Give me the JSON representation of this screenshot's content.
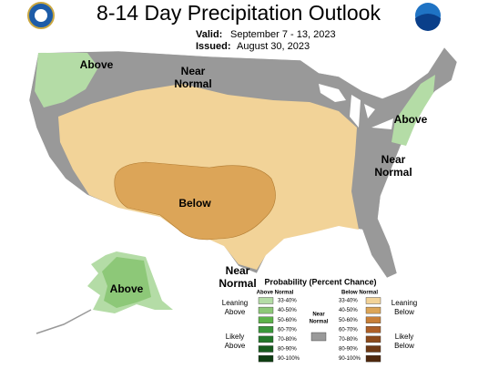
{
  "header": {
    "title": "8-14 Day Precipitation Outlook",
    "valid_label": "Valid:",
    "valid": "September 7 - 13, 2023",
    "issued_label": "Issued:",
    "issued": "August 30, 2023"
  },
  "map_labels": [
    {
      "lines": [
        "Above"
      ]
    },
    {
      "lines": [
        "Near",
        "Normal"
      ]
    },
    {
      "lines": [
        "Below"
      ]
    },
    {
      "lines": [
        "Above"
      ]
    },
    {
      "lines": [
        "Near",
        "Normal"
      ]
    },
    {
      "lines": [
        "Near",
        "Normal"
      ]
    },
    {
      "lines": [
        "Above"
      ]
    }
  ],
  "legend": {
    "title": "Probability (Percent Chance)",
    "above": {
      "heading": "Above Normal",
      "items": [
        {
          "label": "33-40%",
          "color": "#b4dca6"
        },
        {
          "label": "40-50%",
          "color": "#8dc878"
        },
        {
          "label": "50-60%",
          "color": "#5cb34a"
        },
        {
          "label": "60-70%",
          "color": "#39973a"
        },
        {
          "label": "70-80%",
          "color": "#23782a"
        },
        {
          "label": "80-90%",
          "color": "#175c1e"
        },
        {
          "label": "90-100%",
          "color": "#0e3d12"
        }
      ]
    },
    "below": {
      "heading": "Below Normal",
      "items": [
        {
          "label": "33-40%",
          "color": "#f2d398"
        },
        {
          "label": "40-50%",
          "color": "#dca558"
        },
        {
          "label": "50-60%",
          "color": "#c97f38"
        },
        {
          "label": "60-70%",
          "color": "#ad5f27"
        },
        {
          "label": "70-80%",
          "color": "#8c4a1b"
        },
        {
          "label": "80-90%",
          "color": "#6e3914"
        },
        {
          "label": "90-100%",
          "color": "#4f280d"
        }
      ]
    },
    "near": {
      "heading": [
        "Near",
        "Normal"
      ],
      "color": "#999999"
    },
    "side_labels": {
      "leaning_above": [
        "Leaning",
        "Above"
      ],
      "likely_above": [
        "Likely",
        "Above"
      ],
      "leaning_below": [
        "Leaning",
        "Below"
      ],
      "likely_below": [
        "Likely",
        "Below"
      ]
    }
  }
}
